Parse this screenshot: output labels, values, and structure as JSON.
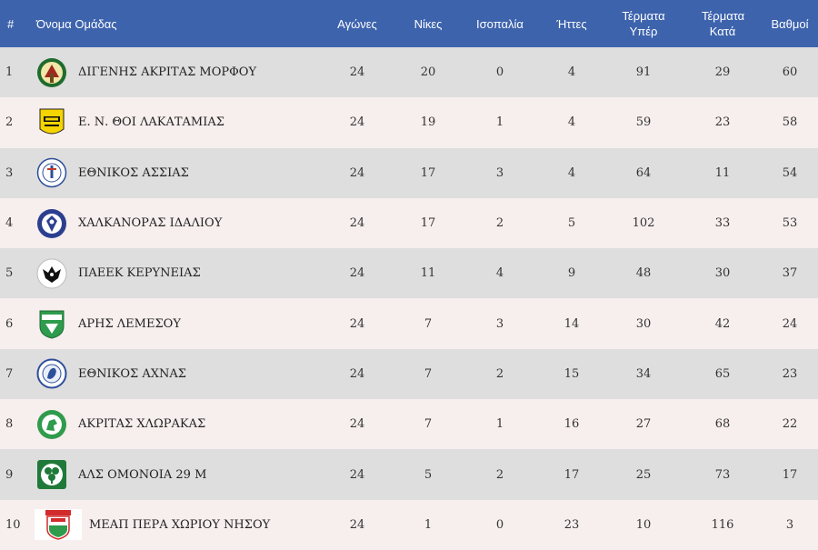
{
  "headers": {
    "rank": "#",
    "team": "Όνομα Ομάδας",
    "played": "Αγώνες",
    "wins": "Νίκες",
    "draws": "Ισοπαλία",
    "losses": "Ήττες",
    "goals_for": "Τέρματα Υπέρ",
    "goals_against": "Τέρματα Κατά",
    "points": "Βαθμοί"
  },
  "rows": [
    {
      "rank": "1",
      "team": "ΔΙΓΕΝΗΣ ΑΚΡΙΤΑΣ ΜΟΡΦΟΥ",
      "logo": "digenis-crest-icon",
      "played": "24",
      "wins": "20",
      "draws": "0",
      "losses": "4",
      "goals_for": "91",
      "goals_against": "29",
      "points": "60"
    },
    {
      "rank": "2",
      "team": "Ε. Ν. ΘΟΙ ΛΑΚΑΤΑΜΙΑΣ",
      "logo": "thoi-crest-icon",
      "played": "24",
      "wins": "19",
      "draws": "1",
      "losses": "4",
      "goals_for": "59",
      "goals_against": "23",
      "points": "58"
    },
    {
      "rank": "3",
      "team": "ΕΘΝΙΚΟΣ ΑΣΣΙΑΣ",
      "logo": "ethnikos-assias-crest-icon",
      "played": "24",
      "wins": "17",
      "draws": "3",
      "losses": "4",
      "goals_for": "64",
      "goals_against": "11",
      "points": "54"
    },
    {
      "rank": "4",
      "team": "ΧΑΛΚΑΝΟΡΑΣ ΙΔΑΛΙΟΥ",
      "logo": "chalkanoras-crest-icon",
      "played": "24",
      "wins": "17",
      "draws": "2",
      "losses": "5",
      "goals_for": "102",
      "goals_against": "33",
      "points": "53"
    },
    {
      "rank": "5",
      "team": "ΠΑΕΕΚ ΚΕΡΥΝΕΙΑΣ",
      "logo": "paeek-crest-icon",
      "played": "24",
      "wins": "11",
      "draws": "4",
      "losses": "9",
      "goals_for": "48",
      "goals_against": "30",
      "points": "37"
    },
    {
      "rank": "6",
      "team": "ΑΡΗΣ ΛΕΜΕΣΟΥ",
      "logo": "aris-crest-icon",
      "played": "24",
      "wins": "7",
      "draws": "3",
      "losses": "14",
      "goals_for": "30",
      "goals_against": "42",
      "points": "24"
    },
    {
      "rank": "7",
      "team": "ΕΘΝΙΚΟΣ ΑΧΝΑΣ",
      "logo": "ethnikos-achnas-crest-icon",
      "played": "24",
      "wins": "7",
      "draws": "2",
      "losses": "15",
      "goals_for": "34",
      "goals_against": "65",
      "points": "23"
    },
    {
      "rank": "8",
      "team": "ΑΚΡΙΤΑΣ ΧΛΩΡΑΚΑΣ",
      "logo": "akritas-crest-icon",
      "played": "24",
      "wins": "7",
      "draws": "1",
      "losses": "16",
      "goals_for": "27",
      "goals_against": "68",
      "points": "22"
    },
    {
      "rank": "9",
      "team": "ΑΛΣ ΟΜΟΝΟΙΑ 29 Μ",
      "logo": "omonoia-crest-icon",
      "played": "24",
      "wins": "5",
      "draws": "2",
      "losses": "17",
      "goals_for": "25",
      "goals_against": "73",
      "points": "17"
    },
    {
      "rank": "10",
      "team": "ΜΕΑΠ ΠΕΡΑ ΧΩΡΙΟΥ ΝΗΣΟΥ",
      "logo": "meap-crest-icon",
      "played": "24",
      "wins": "1",
      "draws": "0",
      "losses": "23",
      "goals_for": "10",
      "goals_against": "116",
      "points": "3"
    }
  ],
  "colors": {
    "header_bg": "#3d63ad",
    "row_odd": "#dedede",
    "row_even": "#f7eeee"
  }
}
